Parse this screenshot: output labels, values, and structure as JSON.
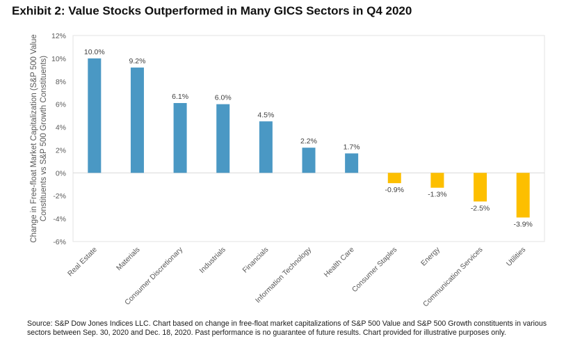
{
  "title": "Exhibit 2: Value Stocks Outperformed in Many GICS Sectors in Q4 2020",
  "source_lines": [
    "Source:  S&P Dow Jones Indices LLC. Chart based on change in free-float market capitalizations of S&P 500 Value and S&P 500 Growth constituents in various",
    "sectors between Sep. 30, 2020 and Dec. 18, 2020. Past performance is no guarantee of future results.  Chart provided for illustrative purposes only."
  ],
  "colors": {
    "positive": "#4a98c4",
    "negative": "#fdbf00",
    "axis_text": "#595959",
    "grid": "#d9d9d9"
  },
  "chart_data": {
    "type": "bar",
    "title": "Exhibit 2: Value Stocks Outperformed in Many GICS Sectors in Q4 2020",
    "xlabel": "",
    "ylabel_lines": [
      "Change in Free-float Market Capitalization (S&P 500 Value",
      "Constituents vs S&P 500 Growth Constituents)"
    ],
    "categories": [
      "Real Estate",
      "Materials",
      "Consumer Discretionary",
      "Industrials",
      "Financials",
      "Information Technology",
      "Health Care",
      "Consumer Staples",
      "Energy",
      "Communication Services",
      "Utilities"
    ],
    "values": [
      10.0,
      9.2,
      6.1,
      6.0,
      4.5,
      2.2,
      1.7,
      -0.9,
      -1.3,
      -2.5,
      -3.9
    ],
    "data_labels": [
      "10.0%",
      "9.2%",
      "6.1%",
      "6.0%",
      "4.5%",
      "2.2%",
      "1.7%",
      "-0.9%",
      "-1.3%",
      "-2.5%",
      "-3.9%"
    ],
    "ylim": [
      -6,
      12
    ],
    "yticks": [
      12,
      10,
      8,
      6,
      4,
      2,
      0,
      -2,
      -4,
      -6
    ],
    "ytick_labels": [
      "12%",
      "10%",
      "8%",
      "6%",
      "4%",
      "2%",
      "0%",
      "-2%",
      "-4%",
      "-6%"
    ],
    "grid": false,
    "zero_line": true,
    "legend": "none"
  }
}
